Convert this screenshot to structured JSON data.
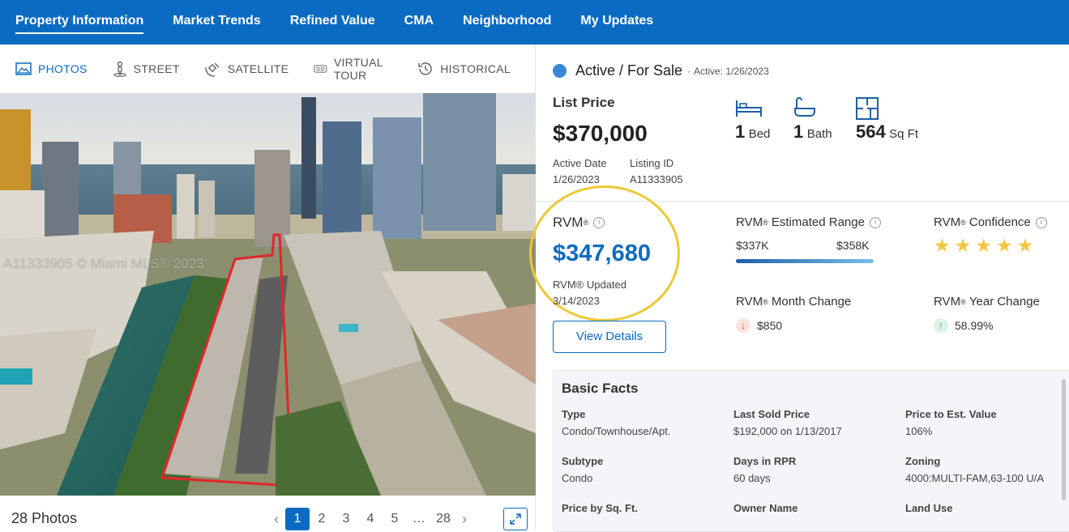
{
  "nav": {
    "tabs": [
      {
        "label": "Property Information",
        "active": true
      },
      {
        "label": "Market Trends"
      },
      {
        "label": "Refined Value"
      },
      {
        "label": "CMA"
      },
      {
        "label": "Neighborhood"
      },
      {
        "label": "My Updates"
      }
    ]
  },
  "media": {
    "tabs": [
      {
        "label": "PHOTOS",
        "icon": "photo-icon",
        "active": true
      },
      {
        "label": "STREET",
        "icon": "street-icon"
      },
      {
        "label": "SATELLITE",
        "icon": "satellite-icon"
      },
      {
        "label": "VIRTUAL TOUR",
        "icon": "virtual-tour-icon"
      },
      {
        "label": "HISTORICAL",
        "icon": "historical-icon"
      }
    ],
    "watermark": "A11333905 © Miami MLS® 2023",
    "photos_count": "28 Photos",
    "pages": [
      "1",
      "2",
      "3",
      "4",
      "5",
      "…",
      "28"
    ],
    "current_page": "1"
  },
  "status": {
    "label": "Active / For Sale",
    "separator": "·",
    "active_text": "Active: 1/26/2023",
    "color": "#3a86d6"
  },
  "listing": {
    "price_label": "List Price",
    "price": "$370,000",
    "active_date_label": "Active Date",
    "active_date": "1/26/2023",
    "listing_id_label": "Listing ID",
    "listing_id": "A11333905",
    "beds_num": "1",
    "beds_unit": "Bed",
    "baths_num": "1",
    "baths_unit": "Bath",
    "sqft_num": "564",
    "sqft_unit": "Sq Ft"
  },
  "rvm": {
    "label": "RVM",
    "value": "$347,680",
    "updated_label": "RVM® Updated",
    "updated_date": "3/14/2023",
    "view_details": "View Details",
    "range_label": "Estimated Range",
    "range_low": "$337K",
    "range_high": "$358K",
    "confidence_label": "Confidence",
    "confidence_stars": 5,
    "month_change_label": "Month Change",
    "month_change": "$850",
    "year_change_label": "Year Change",
    "year_change": "58.99%",
    "accent": "#0b6bc2",
    "highlight": "#ecc835"
  },
  "facts": {
    "title": "Basic Facts",
    "items": [
      {
        "label": "Type",
        "value": "Condo/Townhouse/Apt."
      },
      {
        "label": "Last Sold Price",
        "value": "$192,000 on 1/13/2017"
      },
      {
        "label": "Price to Est. Value",
        "value": "106%"
      },
      {
        "label": "Subtype",
        "value": "Condo"
      },
      {
        "label": "Days in RPR",
        "value": "60 days"
      },
      {
        "label": "Zoning",
        "value": "4000:MULTI-FAM,63-100 U/A"
      },
      {
        "label": "Price by Sq. Ft.",
        "value": ""
      },
      {
        "label": "Owner Name",
        "value": ""
      },
      {
        "label": "Land Use",
        "value": ""
      }
    ]
  }
}
